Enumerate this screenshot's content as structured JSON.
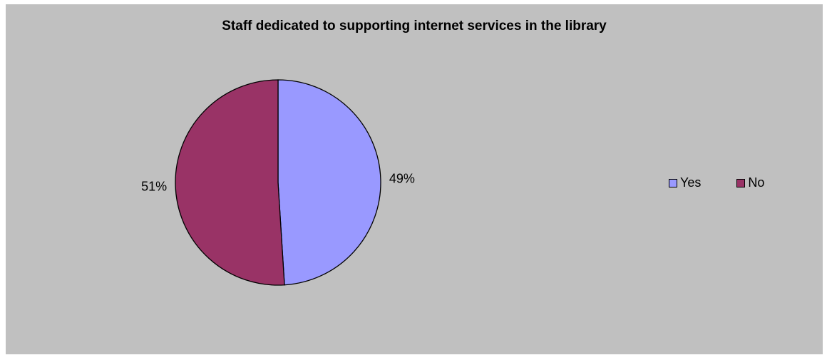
{
  "chart_data": {
    "type": "pie",
    "title": "Staff dedicated to supporting internet services in the library",
    "categories": [
      "Yes",
      "No"
    ],
    "values": [
      49,
      51
    ],
    "labels": [
      "49%",
      "51%"
    ],
    "colors": [
      "#9999ff",
      "#993366"
    ],
    "legend_position": "right"
  }
}
